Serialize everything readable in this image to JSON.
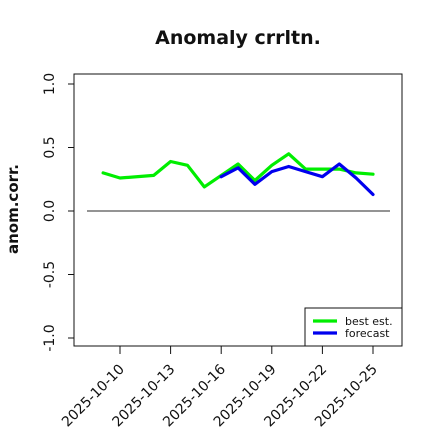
{
  "chart_data": {
    "type": "line",
    "title": "Anomaly crrltn.",
    "xlabel": "",
    "ylabel": "anom.corr.",
    "ylim": [
      -1.0,
      1.0
    ],
    "yticks": [
      "-1.0",
      "-0.5",
      "0.0",
      "0.5",
      "1.0"
    ],
    "xticks": [
      {
        "label": "2025-10-10",
        "color": "#111111"
      },
      {
        "label": "2025-10-13",
        "color": "#111111"
      },
      {
        "label": "2025-10-16",
        "color": "#2e8b2e"
      },
      {
        "label": "2025-10-19",
        "color": "#111111"
      },
      {
        "label": "2025-10-22",
        "color": "#111111"
      },
      {
        "label": "2025-10-25",
        "color": "#111111"
      }
    ],
    "x": [
      "2025-10-09",
      "2025-10-10",
      "2025-10-12",
      "2025-10-13",
      "2025-10-14",
      "2025-10-15",
      "2025-10-16",
      "2025-10-17",
      "2025-10-18",
      "2025-10-19",
      "2025-10-20",
      "2025-10-21",
      "2025-10-22",
      "2025-10-23",
      "2025-10-24",
      "2025-10-25"
    ],
    "series": [
      {
        "name": "best est.",
        "color": "#00ee00",
        "values": [
          0.3,
          0.26,
          0.28,
          0.39,
          0.36,
          0.19,
          0.28,
          0.37,
          0.24,
          0.36,
          0.45,
          0.33,
          0.33,
          0.33,
          0.3,
          0.29
        ]
      },
      {
        "name": "forecast",
        "color": "#0000ee",
        "values": [
          null,
          null,
          null,
          null,
          null,
          null,
          0.27,
          0.34,
          0.21,
          0.31,
          0.35,
          0.31,
          0.27,
          0.37,
          0.26,
          0.13
        ]
      }
    ],
    "hline": 0.0,
    "legend_position": "bottom-right"
  }
}
